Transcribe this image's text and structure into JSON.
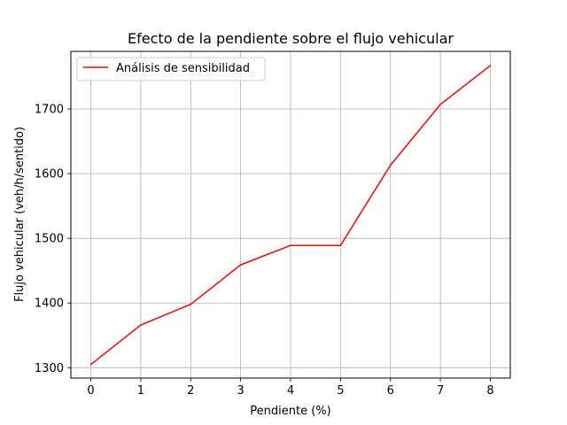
{
  "chart_data": {
    "type": "line",
    "title": "Efecto de la pendiente sobre el flujo vehicular",
    "xlabel": "Pendiente (%)",
    "ylabel": "Flujo vehicular (veh/h/sentido)",
    "x": [
      0,
      1,
      2,
      3,
      4,
      5,
      6,
      7,
      8
    ],
    "series": [
      {
        "name": "Análisis de sensibilidad",
        "color": "#ff0000",
        "values": [
          1305,
          1366,
          1398,
          1459,
          1489,
          1489,
          1613,
          1707,
          1767
        ]
      }
    ],
    "xlim": [
      -0.4,
      8.4
    ],
    "ylim": [
      1284,
      1789
    ],
    "xticks": [
      0,
      1,
      2,
      3,
      4,
      5,
      6,
      7,
      8
    ],
    "yticks": [
      1300,
      1400,
      1500,
      1600,
      1700
    ],
    "grid": true,
    "legend_position": "top-left"
  }
}
